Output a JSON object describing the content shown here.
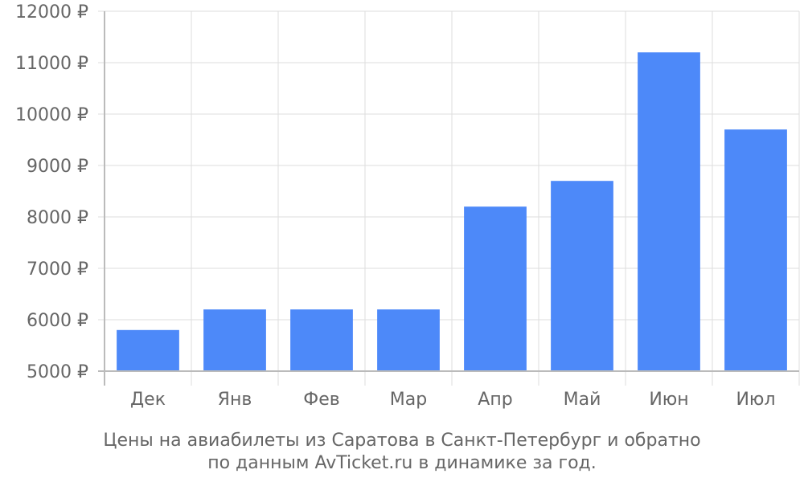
{
  "chart_data": {
    "type": "bar",
    "categories": [
      "Дек",
      "Янв",
      "Фев",
      "Мар",
      "Апр",
      "Май",
      "Июн",
      "Июл"
    ],
    "values": [
      5800,
      6200,
      6200,
      6200,
      8200,
      8700,
      11200,
      9700
    ],
    "ylim": [
      5000,
      12000
    ],
    "yticks": [
      {
        "value": 5000,
        "label": "5000 ₽"
      },
      {
        "value": 6000,
        "label": "6000 ₽"
      },
      {
        "value": 7000,
        "label": "7000 ₽"
      },
      {
        "value": 8000,
        "label": "8000 ₽"
      },
      {
        "value": 9000,
        "label": "9000 ₽"
      },
      {
        "value": 10000,
        "label": "10000 ₽"
      },
      {
        "value": 11000,
        "label": "11000 ₽"
      },
      {
        "value": 12000,
        "label": "12000 ₽"
      }
    ],
    "grid": true,
    "bar_color": "#4d89f9",
    "caption_line1": "Цены на авиабилеты из Саратова в Санкт-Петербург и обратно",
    "caption_line2": "по данным AvTicket.ru в динамике за год."
  }
}
